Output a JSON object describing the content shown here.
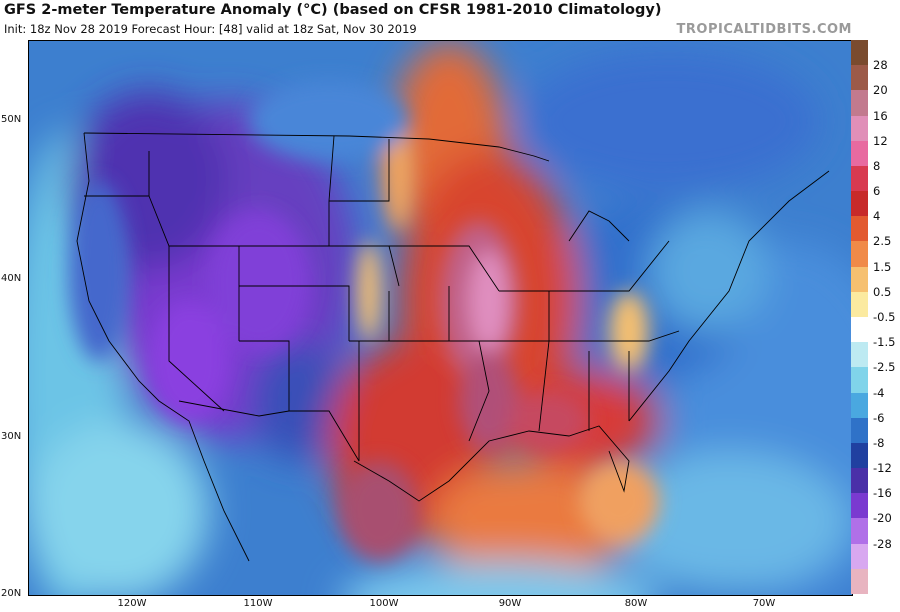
{
  "header": {
    "title": "GFS 2-meter Temperature Anomaly (°C) (based on CFSR 1981-2010 Climatology)",
    "subtitle": "Init: 18z Nov 28 2019   Forecast Hour: [48]   valid at 18z Sat, Nov 30 2019",
    "brand": "TROPICALTIDBITS.COM"
  },
  "axes": {
    "lat_labels": [
      "50N",
      "40N",
      "30N",
      "20N"
    ],
    "lon_labels": [
      "120W",
      "110W",
      "100W",
      "90W",
      "80W",
      "70W"
    ]
  },
  "colorbar": {
    "labels": [
      "28",
      "20",
      "16",
      "12",
      "8",
      "6",
      "4",
      "2.5",
      "1.5",
      "0.5",
      "-0.5",
      "-1.5",
      "-2.5",
      "-4",
      "-6",
      "-8",
      "-12",
      "-16",
      "-20",
      "-28"
    ],
    "colors": [
      "#7a4b2e",
      "#9c5a48",
      "#c27a8e",
      "#e08fb8",
      "#e86aa0",
      "#d83a50",
      "#c72a2a",
      "#e25a30",
      "#f08a48",
      "#f6c070",
      "#fbeaa0",
      "#ffffff",
      "#bdeaf2",
      "#80d4ea",
      "#4aa8e0",
      "#2f72c8",
      "#2040a0",
      "#4a30a8",
      "#7a3ad0",
      "#b070e8",
      "#d8a8f0",
      "#e8b4c0"
    ]
  }
}
